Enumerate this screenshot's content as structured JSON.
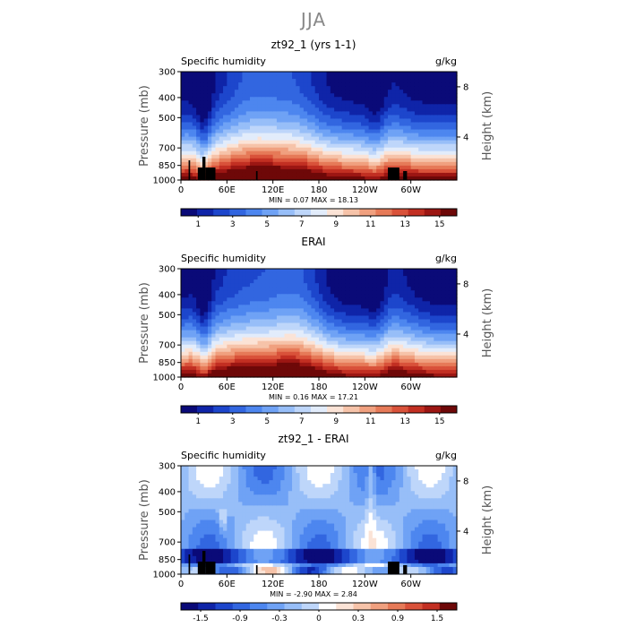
{
  "page_title": "JJA",
  "chart_data": [
    {
      "type": "heatmap",
      "title": "zt92_1 (yrs 1-1)",
      "subtitle_left": "Specific humidity",
      "subtitle_right": "g/kg",
      "ylabel": "Pressure (mb)",
      "ylabel_right": "Height (km)",
      "y_ticks": [
        "300",
        "400",
        "500",
        "700",
        "850",
        "1000"
      ],
      "y_ticks_right": [
        "8",
        "4"
      ],
      "x_ticks": [
        "0",
        "60E",
        "120E",
        "180",
        "120W",
        "60W"
      ],
      "stats": "MIN =     0.07   MAX =    18.13",
      "colorbar_labels": [
        "1",
        "3",
        "5",
        "7",
        "9",
        "11",
        "13",
        "15"
      ],
      "xlim": [
        0,
        360
      ],
      "ylim": [
        1000,
        300
      ],
      "field": "full"
    },
    {
      "type": "heatmap",
      "title": "ERAI",
      "subtitle_left": "Specific humidity",
      "subtitle_right": "g/kg",
      "ylabel": "Pressure (mb)",
      "ylabel_right": "Height (km)",
      "y_ticks": [
        "300",
        "400",
        "500",
        "700",
        "850",
        "1000"
      ],
      "y_ticks_right": [
        "8",
        "4"
      ],
      "x_ticks": [
        "0",
        "60E",
        "120E",
        "180",
        "120W",
        "60W"
      ],
      "stats": "MIN =     0.16   MAX =    17.21",
      "colorbar_labels": [
        "1",
        "3",
        "5",
        "7",
        "9",
        "11",
        "13",
        "15"
      ],
      "xlim": [
        0,
        360
      ],
      "ylim": [
        1000,
        300
      ],
      "field": "full"
    },
    {
      "type": "heatmap",
      "title": "zt92_1 - ERAI",
      "subtitle_left": "Specific humidity",
      "subtitle_right": "g/kg",
      "ylabel": "Pressure (mb)",
      "ylabel_right": "Height (km)",
      "y_ticks": [
        "300",
        "400",
        "500",
        "700",
        "850",
        "1000"
      ],
      "y_ticks_right": [
        "8",
        "4"
      ],
      "x_ticks": [
        "0",
        "60E",
        "120E",
        "180",
        "120W",
        "60W"
      ],
      "stats": "MIN =    -2.90   MAX =     2.84",
      "colorbar_labels": [
        "-1.5",
        "-0.9",
        "-0.3",
        "0",
        "0.3",
        "0.9",
        "1.5"
      ],
      "xlim": [
        0,
        360
      ],
      "ylim": [
        1000,
        300
      ],
      "field": "diff"
    }
  ],
  "colors": {
    "full_scale": [
      "#0a0a78",
      "#0f24a8",
      "#1d46cc",
      "#3266e0",
      "#4d86ef",
      "#6fa2f5",
      "#97bef8",
      "#bed6fa",
      "#e2ecfb",
      "#fbe3d6",
      "#f6c3a9",
      "#f0a07f",
      "#e67a58",
      "#d9523a",
      "#c22f22",
      "#9c1613",
      "#6e0808"
    ],
    "diff_scale": [
      "#0a0a78",
      "#0f24a8",
      "#1d46cc",
      "#3266e0",
      "#4d86ef",
      "#6fa2f5",
      "#97bef8",
      "#bed6fa",
      "#ffffff",
      "#fbe3d6",
      "#f6c3a9",
      "#f0a07f",
      "#e67a58",
      "#d9523a",
      "#c22f22",
      "#6e0808"
    ]
  }
}
